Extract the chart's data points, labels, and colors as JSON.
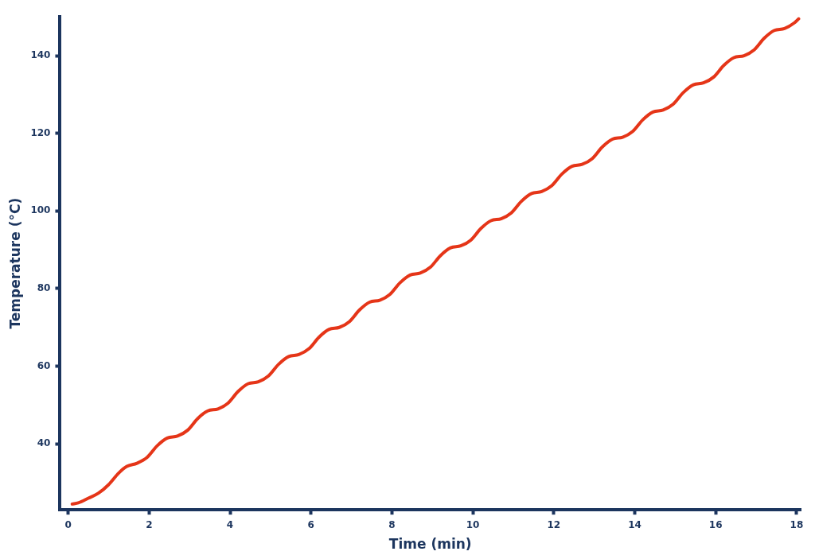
{
  "chart_data": {
    "type": "line",
    "xlabel": "Time (min)",
    "ylabel": "Temperature (°C)",
    "xlim": [
      -0.2,
      18.1
    ],
    "xticks": [
      0,
      2,
      4,
      6,
      8,
      10,
      12,
      14,
      16,
      18
    ],
    "ylim": [
      23,
      150
    ],
    "yticks": [
      40,
      60,
      80,
      100,
      120,
      140
    ],
    "x": [
      0.1,
      0.25,
      0.5,
      0.75,
      1.0,
      1.25,
      1.45,
      1.7,
      1.95,
      2.2,
      2.45,
      2.7,
      2.95,
      3.2,
      3.45,
      3.7,
      3.95,
      4.2,
      4.45,
      4.7,
      4.95,
      5.2,
      5.45,
      5.7,
      5.95,
      6.2,
      6.45,
      6.7,
      6.95,
      7.2,
      7.45,
      7.7,
      7.95,
      8.2,
      8.45,
      8.7,
      8.95,
      9.2,
      9.45,
      9.7,
      9.95,
      10.2,
      10.45,
      10.7,
      10.95,
      11.2,
      11.45,
      11.7,
      11.95,
      12.2,
      12.45,
      12.7,
      12.95,
      13.2,
      13.45,
      13.7,
      13.95,
      14.2,
      14.45,
      14.7,
      14.95,
      15.2,
      15.45,
      15.7,
      15.95,
      16.2,
      16.45,
      16.7,
      16.95,
      17.2,
      17.45,
      17.7,
      17.95,
      18.05
    ],
    "series": [
      {
        "color": "#e53518",
        "values": [
          24.5,
          24.8,
          26,
          27.3,
          29.5,
          32.5,
          34.2,
          35,
          36.5,
          39.5,
          41.5,
          42,
          43.5,
          46.5,
          48.5,
          49,
          50.5,
          53.5,
          55.5,
          56,
          57.5,
          60.5,
          62.5,
          63,
          64.5,
          67.5,
          69.5,
          70,
          71.5,
          74.5,
          76.5,
          77,
          78.5,
          81.5,
          83.5,
          84,
          85.5,
          88.5,
          90.5,
          91,
          92.5,
          95.5,
          97.5,
          98,
          99.5,
          102.5,
          104.5,
          105,
          106.5,
          109.5,
          111.5,
          112,
          113.5,
          116.5,
          118.5,
          119,
          120.5,
          123.5,
          125.5,
          126,
          127.5,
          130.5,
          132.5,
          133,
          134.5,
          137.5,
          139.5,
          140,
          141.5,
          144.5,
          146.5,
          147,
          148.5,
          149.5
        ]
      }
    ]
  }
}
